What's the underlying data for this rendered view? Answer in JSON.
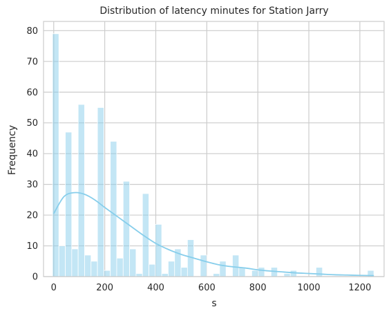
{
  "chart_data": {
    "type": "bar",
    "subtype": "histogram",
    "title": "Distribution of latency minutes for Station Jarry",
    "xlabel": "s",
    "ylabel": "Frequency",
    "xlim": [
      -40,
      1295
    ],
    "ylim": [
      0,
      83
    ],
    "xticks": [
      0,
      200,
      400,
      600,
      800,
      1000,
      1200
    ],
    "yticks": [
      0,
      10,
      20,
      30,
      40,
      50,
      60,
      70,
      80
    ],
    "grid": true,
    "legend": "none",
    "bar_color": "#87ceeb",
    "bins": {
      "start": -5,
      "width": 25.2,
      "counts": [
        79,
        10,
        47,
        9,
        56,
        7,
        5,
        55,
        2,
        44,
        6,
        31,
        9,
        1,
        27,
        4,
        17,
        1,
        5,
        9,
        3,
        12,
        0,
        7,
        0,
        1,
        5,
        0,
        7,
        3,
        0,
        2,
        3,
        0,
        3,
        0,
        1,
        2,
        0,
        0,
        0,
        3,
        0,
        0,
        0,
        0,
        0,
        0,
        0,
        2
      ]
    },
    "kde": {
      "x": [
        0,
        40,
        80,
        120,
        160,
        200,
        250,
        300,
        350,
        400,
        450,
        500,
        550,
        600,
        650,
        700,
        750,
        800,
        850,
        900,
        950,
        1000,
        1050,
        1100,
        1150,
        1200,
        1255
      ],
      "y": [
        20.5,
        26.0,
        27.3,
        26.8,
        25.0,
        22.5,
        19.5,
        16.5,
        13.5,
        10.8,
        8.8,
        7.2,
        6.0,
        4.8,
        3.8,
        3.2,
        2.8,
        2.2,
        1.8,
        1.5,
        1.2,
        1.0,
        0.8,
        0.6,
        0.5,
        0.4,
        0.3
      ]
    }
  }
}
